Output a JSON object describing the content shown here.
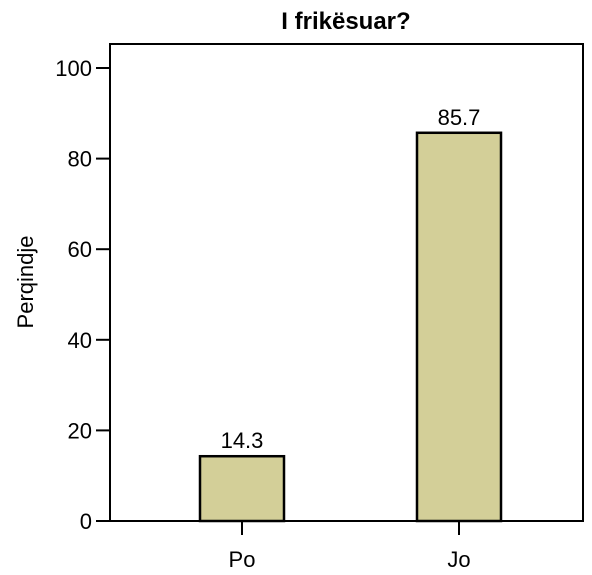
{
  "chart_data": {
    "type": "bar",
    "title": "I frikësuar?",
    "xlabel": "",
    "ylabel": "Perqindje",
    "categories": [
      "Po",
      "Jo"
    ],
    "values": [
      14.3,
      85.7
    ],
    "data_labels": [
      "14.3",
      "85.7"
    ],
    "ylim": [
      0,
      100
    ],
    "yticks": [
      0,
      20,
      40,
      60,
      80,
      100
    ],
    "grid": false,
    "legend": "none",
    "colors": {
      "bar_fill": "#d3cf98",
      "bar_stroke": "#000000",
      "axis": "#000000",
      "background": "#ffffff"
    }
  }
}
